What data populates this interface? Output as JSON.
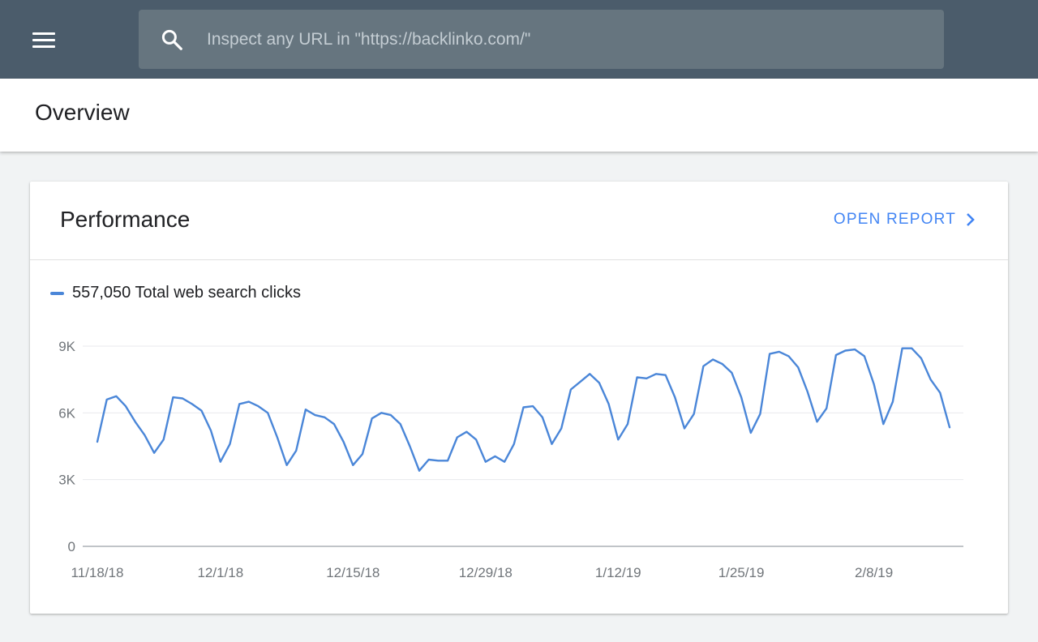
{
  "header": {
    "search_placeholder": "Inspect any URL in \"https://backlinko.com/\""
  },
  "page": {
    "title": "Overview"
  },
  "card": {
    "title": "Performance",
    "open_report_label": "OPEN REPORT"
  },
  "legend": {
    "label": "557,050 Total web search clicks"
  },
  "colors": {
    "topbar": "#4b5c6b",
    "search_box": "#66757f",
    "accent": "#4285f4",
    "series": "#4a86d8"
  },
  "chart_data": {
    "type": "line",
    "title": "",
    "xlabel": "",
    "ylabel": "",
    "ylim": [
      0,
      9000
    ],
    "yticks": [
      0,
      3000,
      6000,
      9000
    ],
    "ytick_labels": [
      "0",
      "3K",
      "6K",
      "9K"
    ],
    "x_start": "11/18/18",
    "x_tick_labels": [
      "11/18/18",
      "12/1/18",
      "12/15/18",
      "12/29/18",
      "1/12/19",
      "1/25/19",
      "2/8/19"
    ],
    "x_tick_index": [
      0,
      13,
      27,
      41,
      55,
      68,
      82
    ],
    "grid": true,
    "legend": "top-left",
    "series": [
      {
        "name": "Total web search clicks",
        "total": "557,050",
        "color": "#4a86d8",
        "values": [
          4700,
          6600,
          6750,
          6300,
          5600,
          5000,
          4200,
          4800,
          6700,
          6650,
          6400,
          6100,
          5200,
          3800,
          4600,
          6400,
          6500,
          6300,
          6000,
          4900,
          3650,
          4300,
          6150,
          5900,
          5800,
          5500,
          4700,
          3650,
          4150,
          5750,
          6000,
          5900,
          5500,
          4500,
          3400,
          3900,
          3850,
          3850,
          4900,
          5150,
          4800,
          3800,
          4050,
          3800,
          4600,
          6250,
          6300,
          5800,
          4600,
          5300,
          7050,
          7400,
          7750,
          7350,
          6400,
          4800,
          5500,
          7600,
          7550,
          7750,
          7700,
          6700,
          5300,
          5950,
          8100,
          8400,
          8200,
          7800,
          6700,
          5100,
          5950,
          8650,
          8750,
          8550,
          8050,
          6950,
          5600,
          6200,
          8600,
          8800,
          8850,
          8550,
          7300,
          5500,
          6500,
          8900,
          8900,
          8450,
          7500,
          6900,
          5350
        ]
      }
    ]
  }
}
